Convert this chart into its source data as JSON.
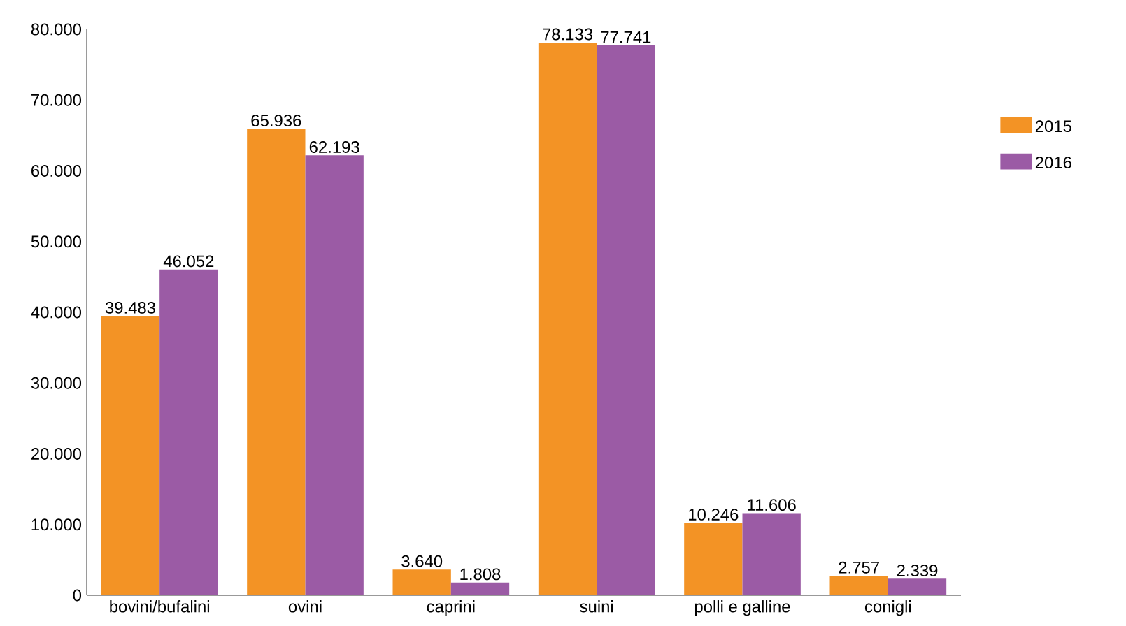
{
  "chart_data": {
    "type": "bar",
    "categories": [
      "bovini/bufalini",
      "ovini",
      "caprini",
      "suini",
      "polli e galline",
      "conigli"
    ],
    "series": [
      {
        "name": "2015",
        "color": "#f39325",
        "values": [
          39483,
          65936,
          3640,
          78133,
          10246,
          2757
        ],
        "value_labels": [
          "39.483",
          "65.936",
          "3.640",
          "78.133",
          "10.246",
          "2.757"
        ]
      },
      {
        "name": "2016",
        "color": "#9b5ba5",
        "values": [
          46052,
          62193,
          1808,
          77741,
          11606,
          2339
        ],
        "value_labels": [
          "46.052",
          "62.193",
          "1.808",
          "77.741",
          "11.606",
          "2.339"
        ]
      }
    ],
    "ylim": [
      0,
      80000
    ],
    "yticks": [
      0,
      {
        "value": 10000,
        "label": "10.000"
      },
      {
        "value": 20000,
        "label": "20.000"
      },
      {
        "value": 30000,
        "label": "30.000"
      },
      {
        "value": 40000,
        "label": "40.000"
      },
      {
        "value": 50000,
        "label": "50.000"
      },
      {
        "value": 60000,
        "label": "60.000"
      },
      {
        "value": 70000,
        "label": "70.000"
      },
      {
        "value": 80000,
        "label": "80.000"
      }
    ],
    "grid": false,
    "legend": "right"
  }
}
